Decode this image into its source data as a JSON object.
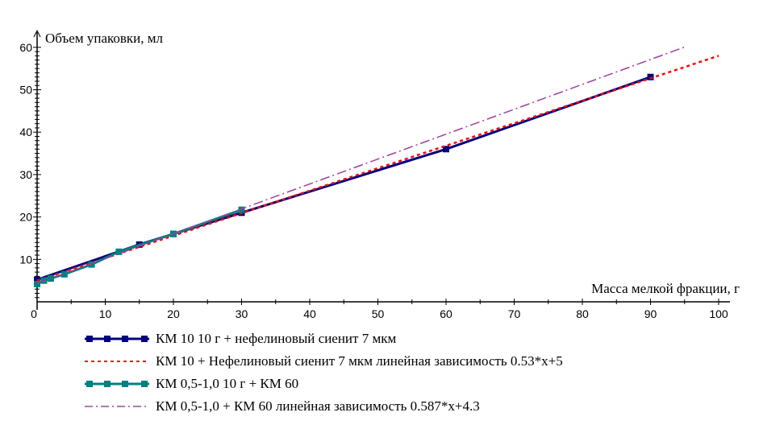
{
  "chart_data": {
    "type": "line",
    "ylabel": "Объем упаковки, мл",
    "xlabel": "Масса мелкой фракции, г",
    "xlim": [
      0,
      100
    ],
    "ylim": [
      0,
      60
    ],
    "xticks": [
      0,
      10,
      20,
      30,
      40,
      50,
      60,
      70,
      80,
      90,
      100
    ],
    "yticks": [
      10,
      20,
      30,
      40,
      50,
      60
    ],
    "series": [
      {
        "name": "КМ 10  10 г + нефелиновый сиенит 7 мкм",
        "color": "#000080",
        "style": "solid-markers",
        "x": [
          0,
          15,
          20,
          30,
          60,
          90
        ],
        "y": [
          5.2,
          13.5,
          16,
          21,
          36,
          53
        ]
      },
      {
        "name": "КМ 10 + Нефелиновый сиенит 7 мкм линейная зависимость 0.53*x+5",
        "color": "#ff0000",
        "style": "dotted",
        "slope": 0.53,
        "intercept": 5,
        "xrange": [
          0,
          100
        ]
      },
      {
        "name": "КМ 0,5-1,0 10 г + КМ 60",
        "color": "#008080",
        "style": "solid-markers",
        "x": [
          0,
          1,
          2,
          4,
          8,
          12,
          20,
          30
        ],
        "y": [
          4.2,
          5,
          5.5,
          6.5,
          8.8,
          11.8,
          16,
          21.7
        ]
      },
      {
        "name": "КМ 0,5-1,0 + КМ 60 линейная зависимость 0.587*x+4.3",
        "color": "#a040a0",
        "style": "dashdot",
        "slope": 0.587,
        "intercept": 4.3,
        "xrange": [
          0,
          95
        ]
      }
    ]
  }
}
